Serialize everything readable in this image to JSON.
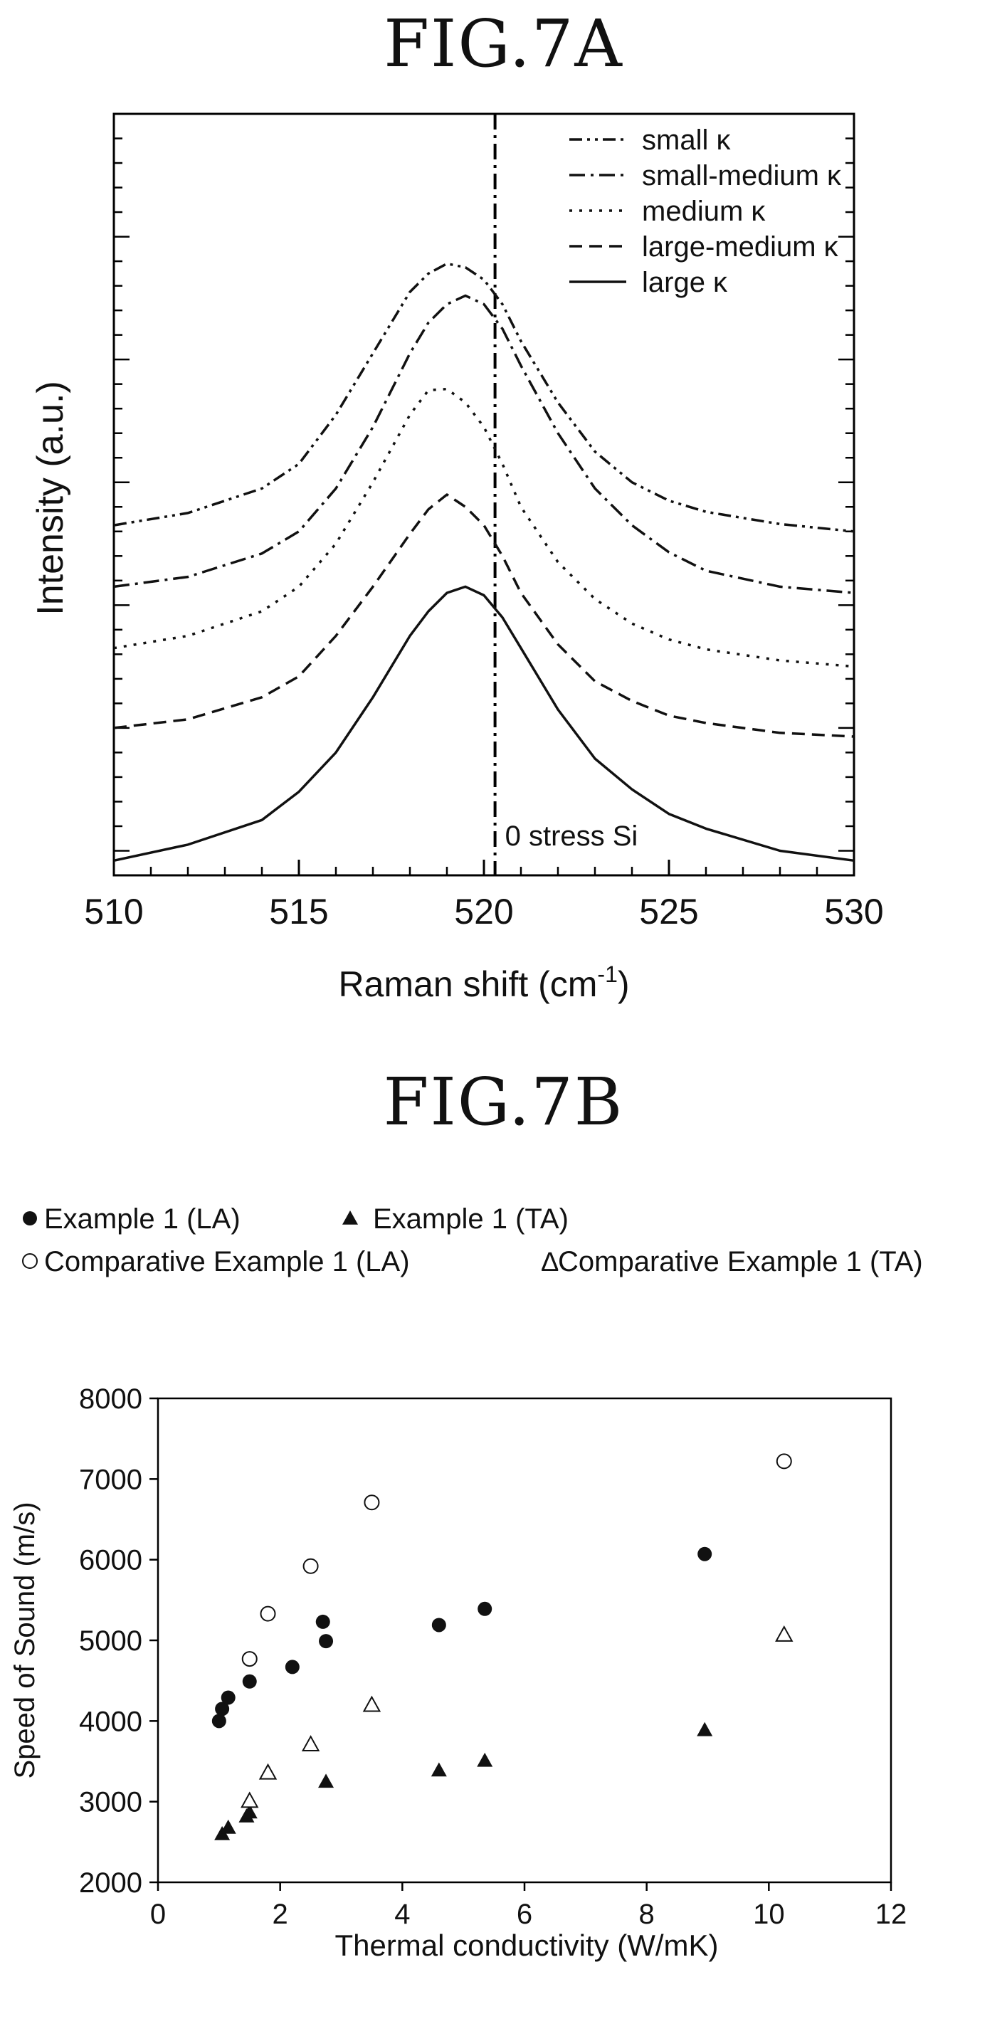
{
  "figures": {
    "a_title": "FIG.7A",
    "b_title": "FIG.7B"
  },
  "chart_data": [
    {
      "type": "line",
      "title": "FIG.7A",
      "xlabel": "Raman shift (cm",
      "xlabel_sup": "-1",
      "xlabel_end": ")",
      "ylabel": "Intensity (a.u.)",
      "xlim": [
        510,
        530
      ],
      "xticks": [
        "510",
        "515",
        "520",
        "525",
        "530"
      ],
      "ylim": [
        0,
        6.2
      ],
      "reference_line": {
        "x": 520.3,
        "label": "0 stress Si"
      },
      "legend_position": "top-right",
      "series": [
        {
          "name": "small κ",
          "dash": "dash-dot-dot",
          "x": [
            510,
            512,
            514,
            515,
            516,
            517,
            518,
            518.5,
            519,
            519.5,
            520,
            520.5,
            521,
            522,
            523,
            524,
            525,
            526,
            528,
            530
          ],
          "y": [
            2.85,
            2.95,
            3.15,
            3.35,
            3.75,
            4.25,
            4.75,
            4.9,
            4.98,
            4.95,
            4.85,
            4.65,
            4.35,
            3.85,
            3.45,
            3.2,
            3.05,
            2.96,
            2.86,
            2.8
          ]
        },
        {
          "name": "small-medium κ",
          "dash": "dash-dot",
          "x": [
            510,
            512,
            514,
            515,
            516,
            517,
            518,
            518.5,
            519,
            519.5,
            520,
            520.5,
            521,
            522,
            523,
            524,
            525,
            526,
            528,
            530
          ],
          "y": [
            2.35,
            2.43,
            2.62,
            2.8,
            3.15,
            3.65,
            4.25,
            4.5,
            4.65,
            4.72,
            4.65,
            4.45,
            4.15,
            3.6,
            3.15,
            2.85,
            2.63,
            2.48,
            2.35,
            2.3
          ]
        },
        {
          "name": "medium κ",
          "dash": "dotted",
          "x": [
            510,
            512,
            514,
            515,
            516,
            517,
            518,
            518.5,
            519,
            519.5,
            520,
            520.5,
            521,
            522,
            523,
            524,
            525,
            526,
            528,
            530
          ],
          "y": [
            1.85,
            1.95,
            2.15,
            2.35,
            2.7,
            3.2,
            3.75,
            3.95,
            3.96,
            3.85,
            3.65,
            3.35,
            3.0,
            2.55,
            2.25,
            2.05,
            1.92,
            1.84,
            1.75,
            1.7
          ]
        },
        {
          "name": "large-medium κ",
          "dash": "dashed",
          "x": [
            510,
            512,
            514,
            515,
            516,
            517,
            518,
            518.5,
            519,
            519.5,
            520,
            520.5,
            521,
            522,
            523,
            524,
            525,
            526,
            528,
            530
          ],
          "y": [
            1.2,
            1.27,
            1.45,
            1.62,
            1.95,
            2.35,
            2.78,
            2.98,
            3.1,
            3.0,
            2.85,
            2.6,
            2.3,
            1.88,
            1.58,
            1.42,
            1.3,
            1.24,
            1.16,
            1.13
          ]
        },
        {
          "name": "large κ",
          "dash": "solid",
          "x": [
            510,
            512,
            514,
            515,
            516,
            517,
            518,
            518.5,
            519,
            519.5,
            520,
            520.5,
            521,
            522,
            523,
            524,
            525,
            526,
            528,
            530
          ],
          "y": [
            0.12,
            0.25,
            0.45,
            0.68,
            1.0,
            1.45,
            1.95,
            2.15,
            2.3,
            2.35,
            2.28,
            2.1,
            1.85,
            1.35,
            0.95,
            0.7,
            0.5,
            0.38,
            0.2,
            0.12
          ]
        }
      ]
    },
    {
      "type": "scatter",
      "title": "FIG.7B",
      "xlabel": "Thermal conductivity  (W/mK)",
      "ylabel": "Speed of Sound (m/s)",
      "xlim": [
        0,
        12
      ],
      "ylim": [
        2000,
        8000
      ],
      "xticks": [
        "0",
        "2",
        "4",
        "6",
        "8",
        "10",
        "12"
      ],
      "yticks": [
        "2000",
        "3000",
        "4000",
        "5000",
        "6000",
        "7000",
        "8000"
      ],
      "legend_position": "top",
      "series": [
        {
          "name": "Example 1 (LA)",
          "marker": "filled-circle",
          "x": [
            1.0,
            1.05,
            1.15,
            1.5,
            2.2,
            2.7,
            2.75,
            4.6,
            5.35,
            8.95
          ],
          "y": [
            4000,
            4150,
            4290,
            4490,
            4670,
            5230,
            4990,
            5190,
            5390,
            6070
          ]
        },
        {
          "name": "Example 1 (TA)",
          "marker": "filled-triangle",
          "x": [
            1.05,
            1.15,
            1.45,
            1.5,
            2.75,
            4.6,
            5.35,
            8.95
          ],
          "y": [
            2600,
            2680,
            2820,
            2870,
            3250,
            3390,
            3510,
            3890
          ]
        },
        {
          "name": "Comparative Example 1 (LA)",
          "marker": "open-circle",
          "x": [
            1.5,
            1.8,
            2.5,
            3.5,
            10.25
          ],
          "y": [
            4770,
            5330,
            5920,
            6710,
            7220
          ]
        },
        {
          "name": "Comparative Example 1 (TA)",
          "marker": "open-triangle",
          "legend_symbol": "Δ",
          "x": [
            1.5,
            1.8,
            2.5,
            3.5,
            10.25
          ],
          "y": [
            3010,
            3360,
            3710,
            4200,
            5070
          ]
        }
      ]
    }
  ]
}
